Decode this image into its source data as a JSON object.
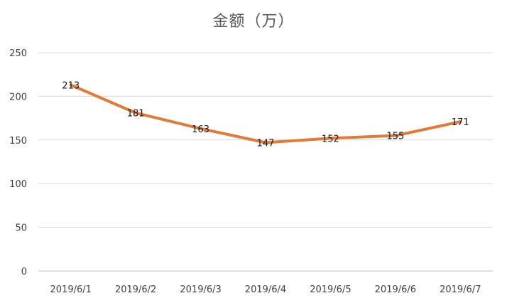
{
  "chart_data": {
    "type": "line",
    "title": "金额（万）",
    "xlabel": "",
    "ylabel": "",
    "categories": [
      "2019/6/1",
      "2019/6/2",
      "2019/6/3",
      "2019/6/4",
      "2019/6/5",
      "2019/6/6",
      "2019/6/7"
    ],
    "series": [
      {
        "values": [
          213,
          181,
          163,
          147,
          152,
          155,
          171
        ],
        "color": "#E07B39"
      }
    ],
    "ylim": [
      0,
      250
    ],
    "yticks": [
      0,
      50,
      100,
      150,
      200,
      250
    ],
    "grid": true,
    "legend": "none",
    "data_labels": true
  },
  "colors": {
    "line": "#E07B39",
    "grid": "#D9D9D9",
    "axis": "#BFBFBF",
    "text": "#404040",
    "title": "#595959"
  }
}
